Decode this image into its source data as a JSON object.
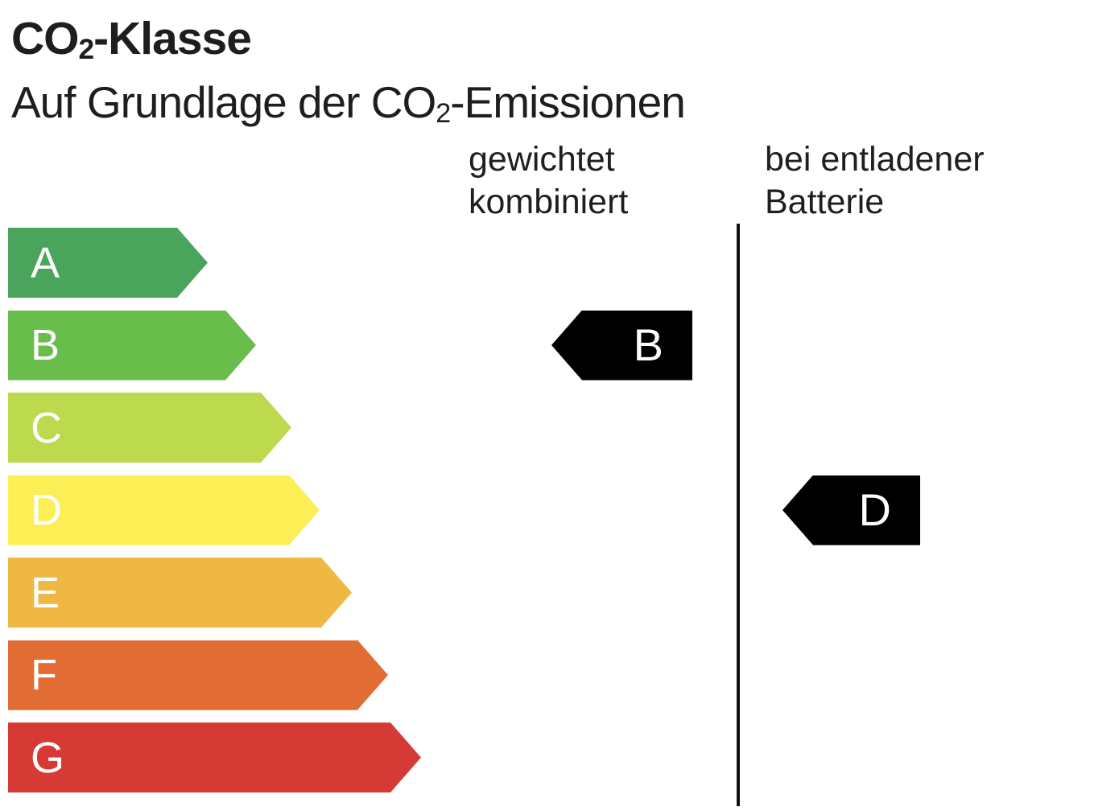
{
  "header": {
    "title": {
      "prefix": "CO",
      "sub": "2",
      "suffix": "-Klasse"
    },
    "subtitle": {
      "prefix": "Auf Grundlage der CO",
      "sub": "2",
      "suffix": "-Emissionen"
    }
  },
  "columns": {
    "weighted": {
      "line1": "gewichtet",
      "line2": "kombiniert"
    },
    "battery": {
      "line1": "bei entladener",
      "line2": "Batterie"
    }
  },
  "scale": {
    "letter_color": "#ffffff",
    "classes": [
      {
        "label": "A",
        "color": "#4aa45c",
        "length": 248
      },
      {
        "label": "B",
        "color": "#69bd4a",
        "length": 308
      },
      {
        "label": "C",
        "color": "#bdd94e",
        "length": 352
      },
      {
        "label": "D",
        "color": "#fcee55",
        "length": 387
      },
      {
        "label": "E",
        "color": "#eeb843",
        "length": 427
      },
      {
        "label": "F",
        "color": "#e16c34",
        "length": 472
      },
      {
        "label": "G",
        "color": "#d63a34",
        "length": 513
      }
    ]
  },
  "markers": {
    "weighted": {
      "label": "B",
      "row": "B",
      "color": "#000000"
    },
    "battery": {
      "label": "D",
      "row": "D",
      "color": "#000000"
    }
  },
  "divider_color": "#111111",
  "chart_data": {
    "type": "bar",
    "title": "CO₂-Klasse",
    "subtitle": "Auf Grundlage der CO₂-Emissionen",
    "categories": [
      "A",
      "B",
      "C",
      "D",
      "E",
      "F",
      "G"
    ],
    "values": [
      248,
      308,
      352,
      387,
      427,
      472,
      513
    ],
    "value_meaning": "relative arrow bar length in px (worse class = longer bar)",
    "bar_colors": [
      "#4aa45c",
      "#69bd4a",
      "#bdd94e",
      "#fcee55",
      "#eeb843",
      "#e16c34",
      "#d63a34"
    ],
    "series": [
      {
        "name": "gewichtet kombiniert",
        "selected_class": "B"
      },
      {
        "name": "bei entladener Batterie",
        "selected_class": "D"
      }
    ],
    "orientation": "horizontal",
    "grid": false,
    "legend_position": "top"
  }
}
